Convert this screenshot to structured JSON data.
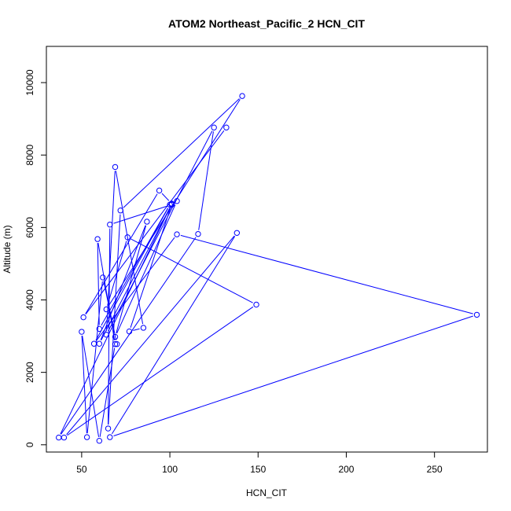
{
  "chart_data": {
    "type": "line",
    "title": "ATOM2 Northeast_Pacific_2 HCN_CIT",
    "xlabel": "HCN_CIT",
    "ylabel": "Altitude (m)",
    "xlim": [
      30,
      280
    ],
    "ylim": [
      -200,
      11000
    ],
    "x_ticks": [
      50,
      100,
      150,
      200,
      250
    ],
    "y_ticks": [
      0,
      2000,
      4000,
      6000,
      8000,
      10000
    ],
    "grid": false,
    "marker": "open-circle",
    "color": "#0000ff",
    "series": [
      {
        "points": [
          {
            "x": 132,
            "y": 8760
          },
          {
            "x": 51,
            "y": 3520
          },
          {
            "x": 94,
            "y": 7020
          },
          {
            "x": 101,
            "y": 6660
          },
          {
            "x": 104,
            "y": 6730
          },
          {
            "x": 69,
            "y": 2980
          },
          {
            "x": 87,
            "y": 6160
          },
          {
            "x": 60,
            "y": 2790
          },
          {
            "x": 101,
            "y": 6640
          },
          {
            "x": 37,
            "y": 200
          },
          {
            "x": 116,
            "y": 5820
          },
          {
            "x": 125,
            "y": 8760
          },
          {
            "x": 64,
            "y": 3040
          },
          {
            "x": 69,
            "y": 7670
          },
          {
            "x": 85,
            "y": 3230
          },
          {
            "x": 77,
            "y": 3130
          },
          {
            "x": 101,
            "y": 6630
          },
          {
            "x": 66,
            "y": 6080
          },
          {
            "x": 65,
            "y": 450
          },
          {
            "x": 72,
            "y": 6470
          },
          {
            "x": 141,
            "y": 9630
          },
          {
            "x": 64,
            "y": 3740
          },
          {
            "x": 76,
            "y": 5730
          },
          {
            "x": 149,
            "y": 3870
          },
          {
            "x": 40,
            "y": 200
          },
          {
            "x": 138,
            "y": 5850
          },
          {
            "x": 66,
            "y": 210
          },
          {
            "x": 274,
            "y": 3590
          },
          {
            "x": 104,
            "y": 5810
          },
          {
            "x": 57,
            "y": 2790
          },
          {
            "x": 100,
            "y": 6630
          },
          {
            "x": 60,
            "y": 3200
          },
          {
            "x": 59,
            "y": 5680
          },
          {
            "x": 69,
            "y": 2780
          },
          {
            "x": 60,
            "y": 110
          },
          {
            "x": 50,
            "y": 3120
          },
          {
            "x": 53,
            "y": 210
          },
          {
            "x": 62,
            "y": 4620
          },
          {
            "x": 70,
            "y": 2780
          }
        ]
      }
    ]
  }
}
